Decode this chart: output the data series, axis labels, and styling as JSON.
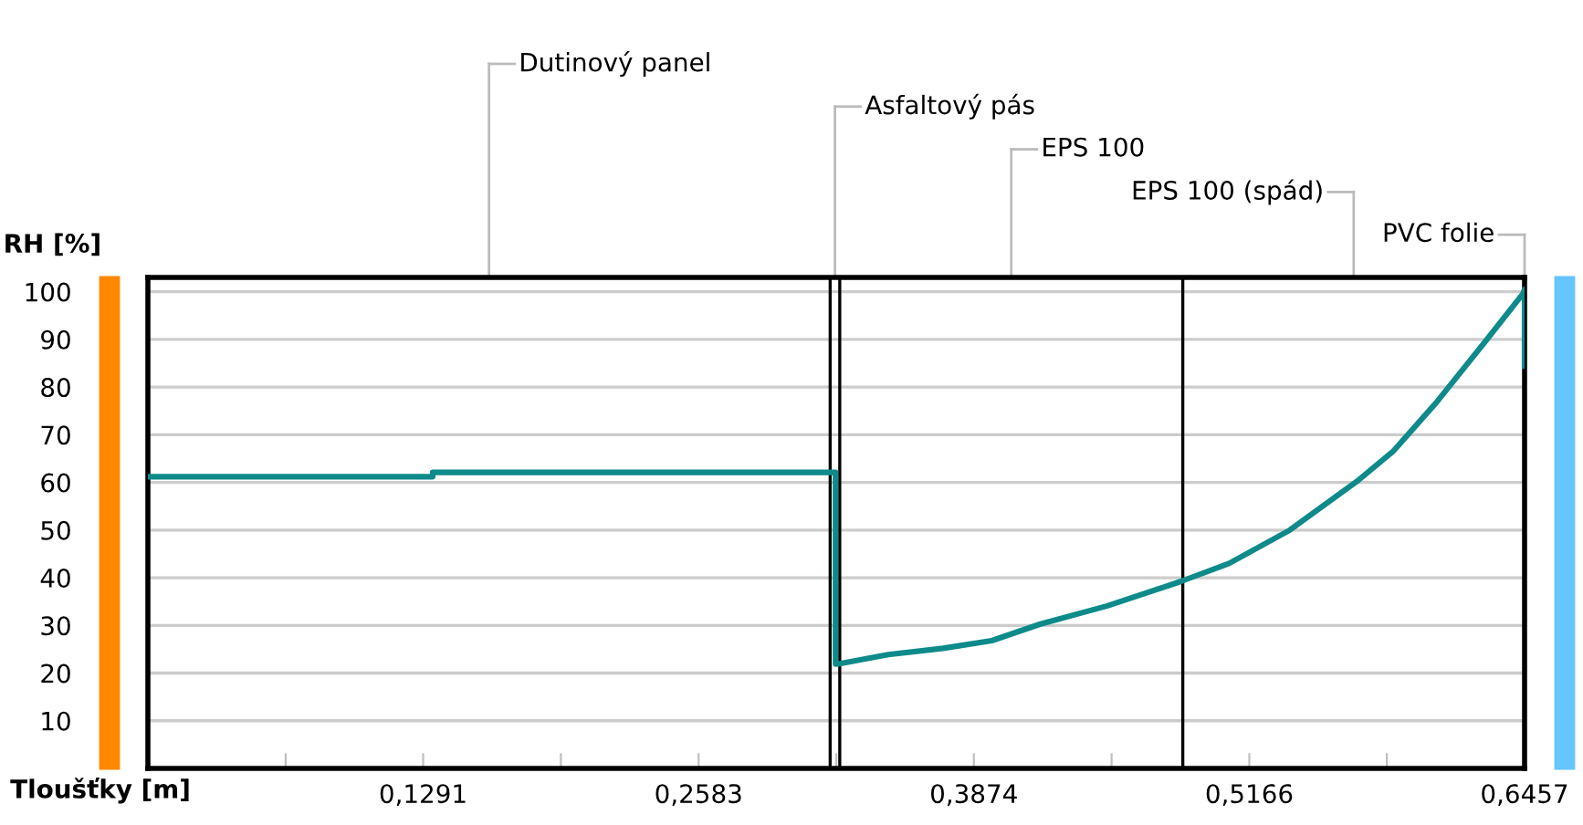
{
  "chart_data": {
    "type": "line",
    "xlabel": "Tloušťky [m]",
    "ylabel": "RH [%]",
    "x": [
      0,
      0.1336,
      0.1336,
      0.3225,
      0.3225,
      0.325,
      0.3473,
      0.373,
      0.3958,
      0.4187,
      0.45,
      0.4843,
      0.5071,
      0.5356,
      0.567,
      0.584,
      0.6042,
      0.627,
      0.645,
      0.6457,
      0.6457
    ],
    "series": [
      {
        "color": "#0e8a8a",
        "values": [
          61.2,
          61.2,
          62.1,
          62.1,
          21.9,
          22.0,
          23.9,
          25.2,
          26.8,
          30.3,
          34.1,
          39.2,
          43.0,
          50.0,
          60.2,
          66.5,
          76.7,
          89.4,
          99.6,
          100.5,
          84.4
        ]
      }
    ],
    "xlim": [
      0,
      0.6457
    ],
    "ylim": [
      0,
      103
    ],
    "xticks": [
      {
        "value": 0.0646,
        "label": null
      },
      {
        "value": 0.1291,
        "label": "0,1291"
      },
      {
        "value": 0.1937,
        "label": null
      },
      {
        "value": 0.2583,
        "label": "0,2583"
      },
      {
        "value": 0.3229,
        "label": null
      },
      {
        "value": 0.3874,
        "label": "0,3874"
      },
      {
        "value": 0.452,
        "label": null
      },
      {
        "value": 0.5166,
        "label": "0,5166"
      },
      {
        "value": 0.5811,
        "label": null
      },
      {
        "value": 0.6457,
        "label": "0,6457"
      }
    ],
    "yticks": [
      10,
      20,
      30,
      40,
      50,
      60,
      70,
      80,
      90,
      100
    ],
    "grid": "y",
    "marker": "none",
    "line_style": "solid",
    "ref_lines": [
      {
        "axis": "x",
        "value": 0.32,
        "color": "#000000"
      },
      {
        "axis": "x",
        "value": 0.3245,
        "color": "#000000"
      },
      {
        "axis": "x",
        "value": 0.4854,
        "color": "#000000"
      }
    ],
    "annotations": [
      "Dutinový panel",
      "Asfaltový pás",
      "EPS 100",
      "EPS 100 (spád)",
      "PVC folie"
    ]
  }
}
